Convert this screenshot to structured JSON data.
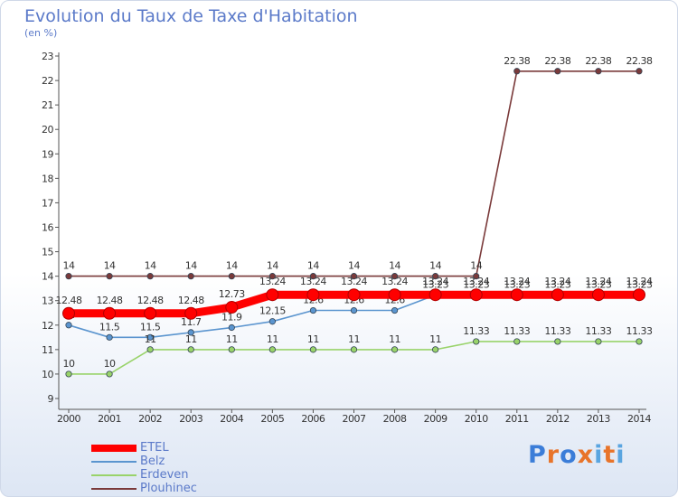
{
  "header": {
    "title": "Evolution du Taux de Taxe d'Habitation",
    "subtitle": "(en %)"
  },
  "logo": {
    "text": "Proxiti",
    "letter_colors": [
      "#3b7dd8",
      "#e8742a",
      "#3b7dd8",
      "#e8742a",
      "#5aa5e0",
      "#e8742a",
      "#5aa5e0"
    ]
  },
  "chart_data": {
    "type": "line",
    "title": "Evolution du Taux de Taxe d'Habitation",
    "subtitle": "(en %)",
    "xlabel": "",
    "ylabel": "",
    "categories": [
      "2000",
      "2001",
      "2002",
      "2003",
      "2004",
      "2005",
      "2006",
      "2007",
      "2008",
      "2009",
      "2010",
      "2011",
      "2012",
      "2013",
      "2014"
    ],
    "y_ticks": [
      9,
      10,
      11,
      12,
      13,
      14,
      15,
      16,
      17,
      18,
      19,
      20,
      21,
      22,
      23
    ],
    "ylim": [
      9,
      23
    ],
    "grid": false,
    "legend_position": "bottom-left",
    "series": [
      {
        "name": "ETEL",
        "color": "#ff0000",
        "emphasis": true,
        "values": [
          12.48,
          12.48,
          12.48,
          12.48,
          12.73,
          13.24,
          13.24,
          13.24,
          13.24,
          13.24,
          13.24,
          13.24,
          13.24,
          13.24,
          13.24
        ],
        "labels": [
          "12.48",
          "12.48",
          "12.48",
          "12.48",
          "12.73",
          "13.24",
          "13.24",
          "13.24",
          "13.24",
          "13.24",
          "13.24",
          "13.24",
          "13.24",
          "13.24",
          "13.24"
        ]
      },
      {
        "name": "Belz",
        "color": "#5b95cf",
        "emphasis": false,
        "values": [
          12,
          11.5,
          11.5,
          11.7,
          11.9,
          12.15,
          12.6,
          12.6,
          12.6,
          13.23,
          13.23,
          13.23,
          13.23,
          13.23,
          13.23
        ],
        "labels": [
          "12",
          "11.5",
          "11.5",
          "11.7",
          "11.9",
          "12.15",
          "12.6",
          "12.6",
          "12.6",
          "13.23",
          "13.23",
          "13.23",
          "13.23",
          "13.23",
          "13.23"
        ]
      },
      {
        "name": "Erdeven",
        "color": "#99d36a",
        "emphasis": false,
        "values": [
          10,
          10,
          11,
          11,
          11,
          11,
          11,
          11,
          11,
          11,
          11.33,
          11.33,
          11.33,
          11.33,
          11.33
        ],
        "labels": [
          "10",
          "10",
          "11",
          "11",
          "11",
          "11",
          "11",
          "11",
          "11",
          "11",
          "11.33",
          "11.33",
          "11.33",
          "11.33",
          "11.33"
        ]
      },
      {
        "name": "Plouhinec",
        "color": "#7a3a3a",
        "emphasis": false,
        "values": [
          14,
          14,
          14,
          14,
          14,
          14,
          14,
          14,
          14,
          14,
          14,
          22.38,
          22.38,
          22.38,
          22.38
        ],
        "labels": [
          "14",
          "14",
          "14",
          "14",
          "14",
          "14",
          "14",
          "14",
          "14",
          "14",
          "14",
          "22.38",
          "22.38",
          "22.38",
          "22.38"
        ]
      }
    ]
  }
}
